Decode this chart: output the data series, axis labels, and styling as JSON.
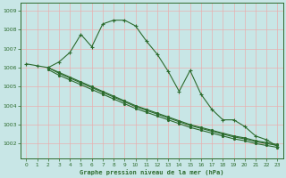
{
  "background_color": "#c8e6e6",
  "grid_color": "#e8b0b0",
  "line_color": "#2d6b2d",
  "title": "Graphe pression niveau de la mer (hPa)",
  "xlim": [
    -0.5,
    23.5
  ],
  "ylim": [
    1001.2,
    1009.4
  ],
  "yticks": [
    1002,
    1003,
    1004,
    1005,
    1006,
    1007,
    1008,
    1009
  ],
  "xticks": [
    0,
    1,
    2,
    3,
    4,
    5,
    6,
    7,
    8,
    9,
    10,
    11,
    12,
    13,
    14,
    15,
    16,
    17,
    18,
    19,
    20,
    21,
    22,
    23
  ],
  "series_main": {
    "x": [
      0,
      1,
      2,
      3,
      4,
      5,
      6,
      7,
      8,
      9,
      10,
      11,
      12,
      13,
      14,
      15,
      16,
      17,
      18,
      19,
      20,
      21,
      22,
      23
    ],
    "y": [
      1006.2,
      1006.1,
      1006.0,
      1006.3,
      1006.8,
      1007.75,
      1007.1,
      1008.3,
      1008.5,
      1008.5,
      1008.2,
      1007.4,
      1006.7,
      1005.8,
      1004.75,
      1005.85,
      1004.6,
      1003.8,
      1003.25,
      1003.25,
      1002.9,
      1002.4,
      1002.2,
      1001.85
    ]
  },
  "series_decline": [
    {
      "x": [
        2,
        3,
        4,
        5,
        6,
        7,
        8,
        9,
        10,
        11,
        12,
        13,
        14,
        15,
        16,
        17,
        18,
        19,
        20,
        21,
        22,
        23
      ],
      "y": [
        1006.0,
        1005.7,
        1005.45,
        1005.2,
        1004.95,
        1004.7,
        1004.45,
        1004.2,
        1003.95,
        1003.75,
        1003.55,
        1003.35,
        1003.15,
        1002.95,
        1002.8,
        1002.65,
        1002.5,
        1002.35,
        1002.25,
        1002.1,
        1002.0,
        1001.9
      ]
    },
    {
      "x": [
        2,
        3,
        4,
        5,
        6,
        7,
        8,
        9,
        10,
        11,
        12,
        13,
        14,
        15,
        16,
        17,
        18,
        19,
        20,
        21,
        22,
        23
      ],
      "y": [
        1005.9,
        1005.6,
        1005.35,
        1005.1,
        1004.85,
        1004.6,
        1004.35,
        1004.1,
        1003.85,
        1003.65,
        1003.45,
        1003.25,
        1003.05,
        1002.85,
        1002.7,
        1002.55,
        1002.4,
        1002.25,
        1002.15,
        1002.0,
        1001.9,
        1001.8
      ]
    },
    {
      "x": [
        2,
        3,
        4,
        5,
        6,
        7,
        8,
        9,
        10,
        11,
        12,
        13,
        14,
        15,
        16,
        17,
        18,
        19,
        20,
        21,
        22,
        23
      ],
      "y": [
        1006.0,
        1005.75,
        1005.5,
        1005.25,
        1005.0,
        1004.75,
        1004.5,
        1004.25,
        1004.0,
        1003.8,
        1003.6,
        1003.4,
        1003.2,
        1003.0,
        1002.85,
        1002.7,
        1002.55,
        1002.4,
        1002.3,
        1002.15,
        1002.05,
        1001.95
      ]
    }
  ]
}
